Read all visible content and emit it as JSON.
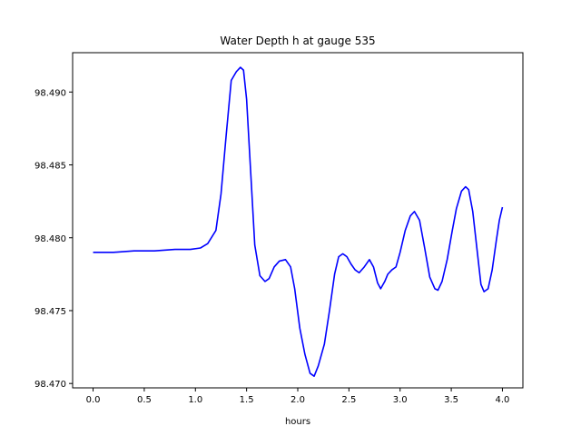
{
  "chart_data": {
    "type": "line",
    "title": "Water Depth h at gauge 535",
    "xlabel": "hours",
    "ylabel": "",
    "xlim": [
      -0.2,
      4.2
    ],
    "ylim": [
      98.4697,
      98.4927
    ],
    "xticks": [
      0.0,
      0.5,
      1.0,
      1.5,
      2.0,
      2.5,
      3.0,
      3.5,
      4.0
    ],
    "xtick_labels": [
      "0.0",
      "0.5",
      "1.0",
      "1.5",
      "2.0",
      "2.5",
      "3.0",
      "3.5",
      "4.0"
    ],
    "yticks": [
      98.47,
      98.475,
      98.48,
      98.485,
      98.49
    ],
    "ytick_labels": [
      "98.470",
      "98.475",
      "98.480",
      "98.485",
      "98.490"
    ],
    "grid": false,
    "series": [
      {
        "color": "#0000ff",
        "x": [
          0.0,
          0.2,
          0.4,
          0.6,
          0.8,
          0.95,
          1.05,
          1.12,
          1.2,
          1.25,
          1.3,
          1.35,
          1.4,
          1.44,
          1.47,
          1.5,
          1.54,
          1.58,
          1.63,
          1.68,
          1.72,
          1.77,
          1.82,
          1.88,
          1.93,
          1.97,
          2.02,
          2.07,
          2.12,
          2.16,
          2.2,
          2.26,
          2.31,
          2.36,
          2.4,
          2.44,
          2.48,
          2.52,
          2.56,
          2.6,
          2.65,
          2.7,
          2.74,
          2.78,
          2.81,
          2.85,
          2.88,
          2.92,
          2.96,
          3.0,
          3.05,
          3.1,
          3.14,
          3.19,
          3.24,
          3.29,
          3.34,
          3.37,
          3.41,
          3.46,
          3.51,
          3.55,
          3.6,
          3.64,
          3.67,
          3.71,
          3.75,
          3.79,
          3.82,
          3.86,
          3.9,
          3.94,
          3.97,
          4.0
        ],
        "y": [
          98.479,
          98.479,
          98.4791,
          98.4791,
          98.4792,
          98.4792,
          98.4793,
          98.4796,
          98.4805,
          98.483,
          98.487,
          98.4908,
          98.4914,
          98.4917,
          98.4915,
          98.4895,
          98.4845,
          98.4795,
          98.4774,
          98.477,
          98.4772,
          98.478,
          98.4784,
          98.4785,
          98.478,
          98.4765,
          98.4738,
          98.472,
          98.4707,
          98.4705,
          98.4712,
          98.4727,
          98.475,
          98.4775,
          98.4787,
          98.4789,
          98.4787,
          98.4782,
          98.4778,
          98.4776,
          98.478,
          98.4785,
          98.478,
          98.4769,
          98.4765,
          98.477,
          98.4775,
          98.4778,
          98.478,
          98.479,
          98.4805,
          98.4815,
          98.4818,
          98.4812,
          98.4793,
          98.4773,
          98.4765,
          98.4764,
          98.477,
          98.4785,
          98.4805,
          98.482,
          98.4832,
          98.4835,
          98.4833,
          98.4818,
          98.4793,
          98.4768,
          98.4763,
          98.4765,
          98.4778,
          98.4798,
          98.4812,
          98.4821
        ]
      }
    ]
  }
}
